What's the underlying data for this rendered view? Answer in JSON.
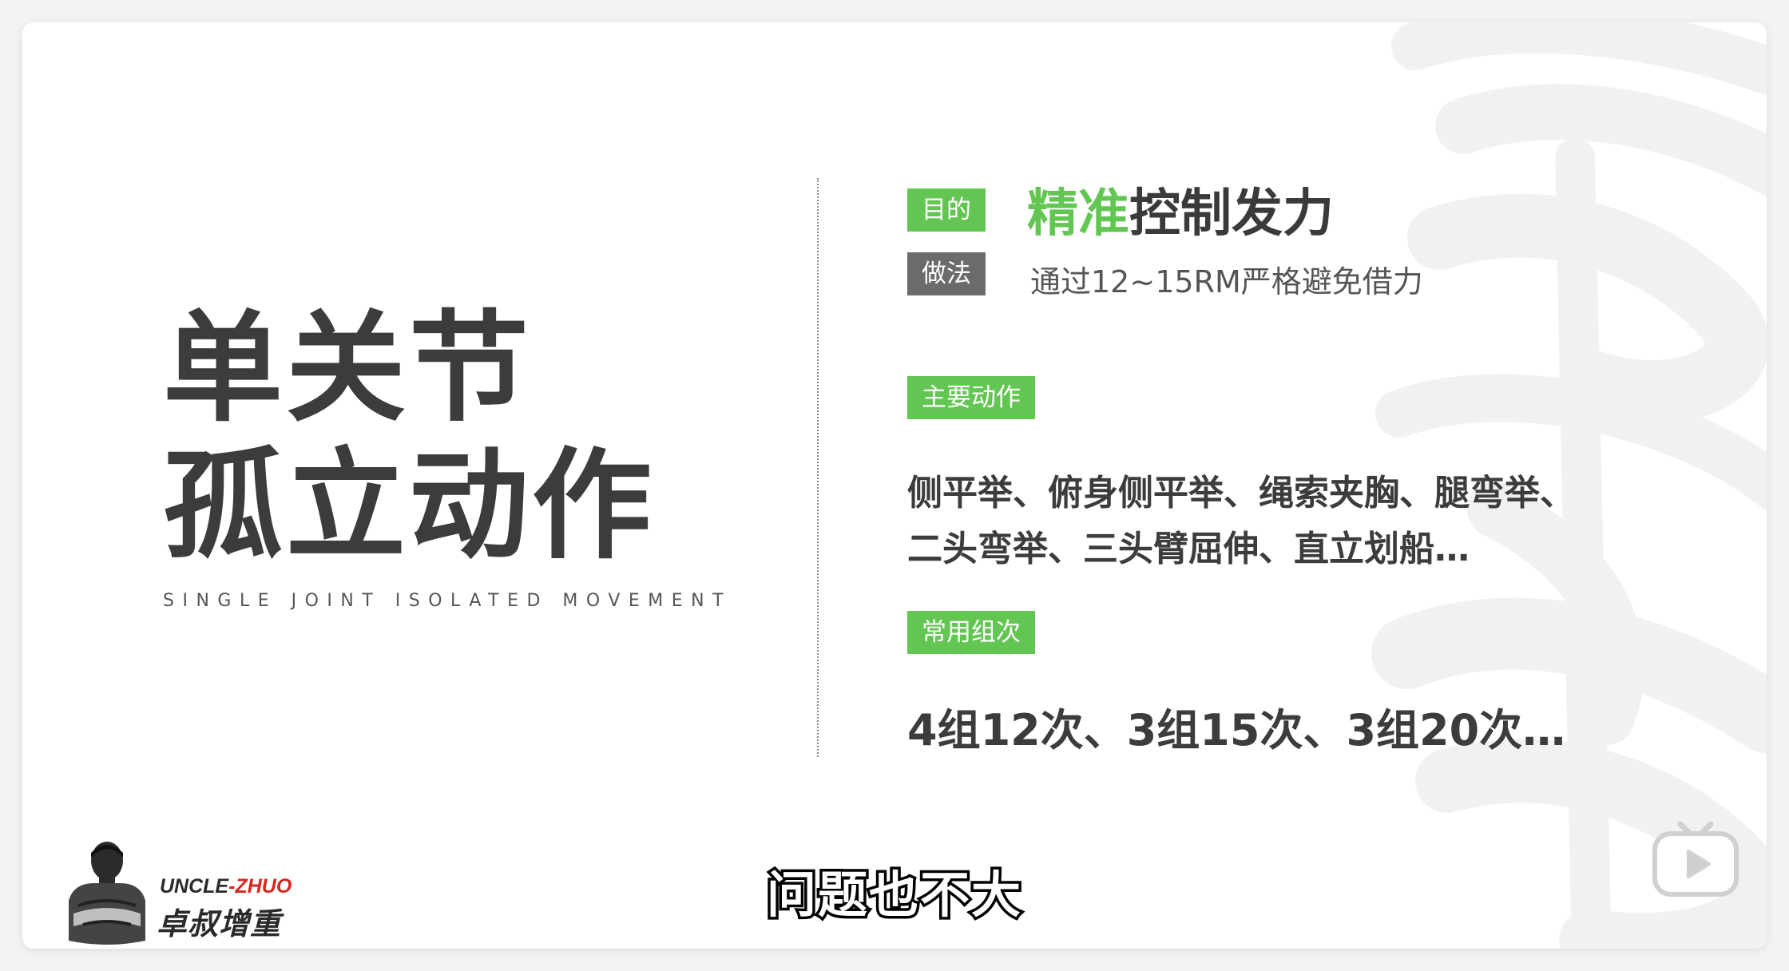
{
  "slide": {
    "title_line1": "单关节",
    "title_line2": "孤立动作",
    "subtitle_en": "SINGLE JOINT ISOLATED MOVEMENT"
  },
  "purpose": {
    "tag": "目的",
    "highlight": "精准",
    "rest": "控制发力"
  },
  "method": {
    "tag": "做法",
    "text": "通过12~15RM严格避免借力"
  },
  "main_moves": {
    "tag": "主要动作",
    "line1": "侧平举、俯身侧平举、绳索夹胸、腿弯举、",
    "line2": "二头弯举、三头臂屈伸、直立划船…"
  },
  "common_sets": {
    "tag": "常用组次",
    "text": "4组12次、3组15次、3组20次…"
  },
  "logo": {
    "en_part1": "UNCLE",
    "en_dash": "-",
    "en_part2": "ZHUO",
    "cn": "卓叔增重"
  },
  "caption": {
    "text": "问题也不大"
  },
  "icons": {
    "play": "play-badge-icon",
    "mascot": "mascot-figure-icon",
    "watermark": "calligraphy-watermark"
  },
  "colors": {
    "accent_green": "#63c653",
    "tag_gray": "#6b6b6b",
    "text_dark": "#3c3c3c",
    "logo_red": "#d6261d"
  }
}
